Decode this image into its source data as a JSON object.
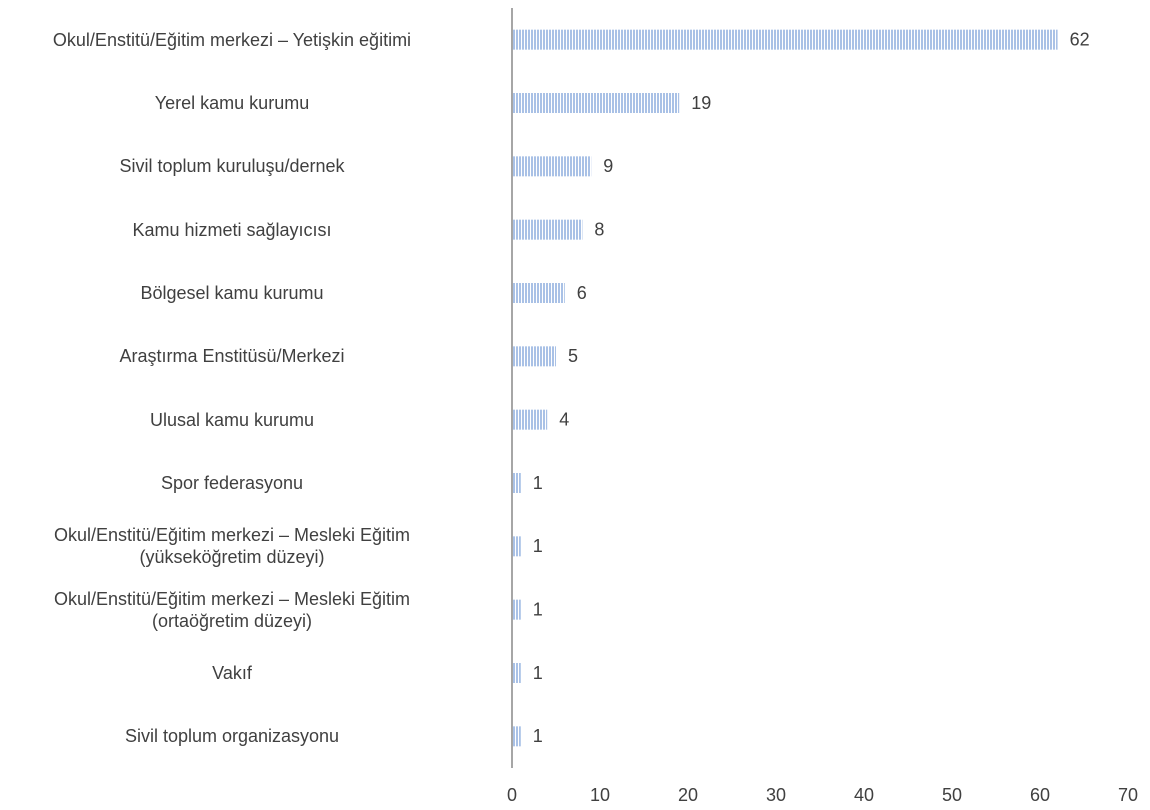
{
  "chart_data": {
    "type": "barh",
    "categories": [
      "Okul/Enstitü/Eğitim merkezi – Yetişkin eğitimi",
      "Yerel kamu kurumu",
      "Sivil toplum kuruluşu/dernek",
      "Kamu hizmeti sağlayıcısı",
      "Bölgesel kamu kurumu",
      "Araştırma Enstitüsü/Merkezi",
      "Ulusal kamu kurumu",
      "Spor federasyonu",
      "Okul/Enstitü/Eğitim merkezi – Mesleki Eğitim\n(yükseköğretim düzeyi)",
      "Okul/Enstitü/Eğitim merkezi – Mesleki Eğitim\n(ortaöğretim düzeyi)",
      "Vakıf",
      "Sivil toplum organizasyonu"
    ],
    "values": [
      62,
      19,
      9,
      8,
      6,
      5,
      4,
      1,
      1,
      1,
      1,
      1
    ],
    "color": "#a9c1e6",
    "xlim": [
      0,
      70
    ],
    "xticks": [
      0,
      10,
      20,
      30,
      40,
      50,
      60,
      70
    ],
    "grid": false
  }
}
